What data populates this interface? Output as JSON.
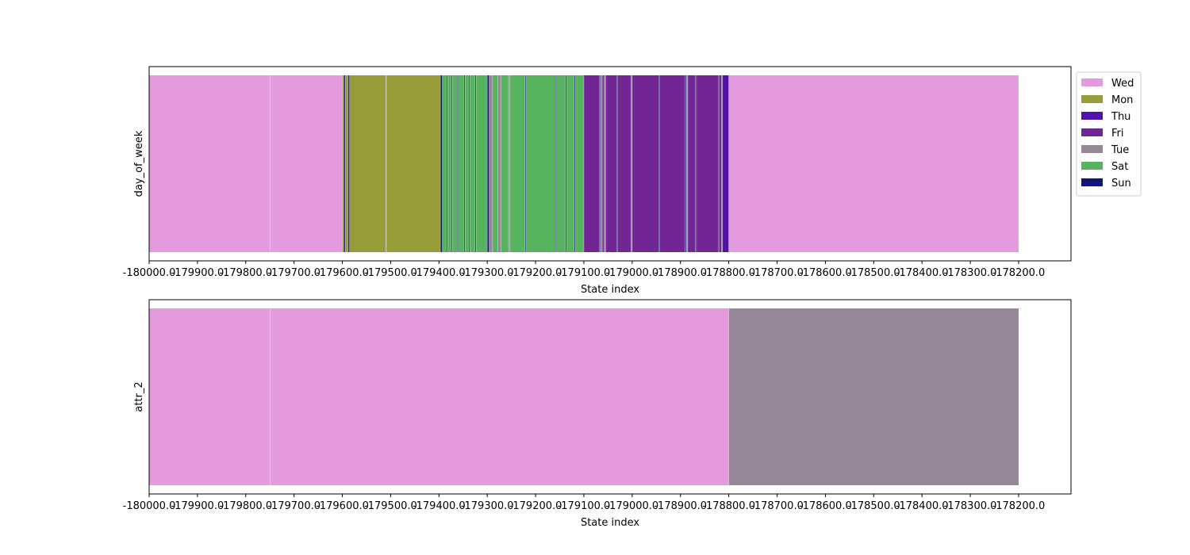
{
  "chart_data": [
    {
      "type": "state-timeline",
      "ylabel": "day_of_week",
      "xlabel": "State index",
      "xlim": [
        -180000.0,
        -178091.5
      ],
      "xticks": [
        -180000.0,
        -179900.0,
        -179800.0,
        -179700.0,
        -179600.0,
        -179500.0,
        -179400.0,
        -179300.0,
        -179200.0,
        -179100.0,
        -179000.0,
        -178900.0,
        -178800.0,
        -178700.0,
        -178600.0,
        -178500.0,
        -178400.0,
        -178300.0,
        -178200.0
      ],
      "xtick_labels": [
        "-180000.0",
        "-179900.0",
        "-179800.0",
        "-179700.0",
        "-179600.0",
        "-179500.0",
        "-179400.0",
        "-179300.0",
        "-179200.0",
        "-179100.0",
        "-179000.0",
        "-178900.0",
        "-178800.0",
        "-178700.0",
        "-178600.0",
        "-178500.0",
        "-178400.0",
        "-178300.0",
        "-178200.0"
      ],
      "segments": [
        {
          "start": -180000,
          "end": -179749,
          "state": "Wed"
        },
        {
          "start": -179749,
          "end": -179600,
          "state": "Wed"
        },
        {
          "start": -179600,
          "end": -179597,
          "state": "Mon"
        },
        {
          "start": -179597,
          "end": -179594,
          "state": "Sun"
        },
        {
          "start": -179594,
          "end": -179588,
          "state": "Mon"
        },
        {
          "start": -179588,
          "end": -179585,
          "state": "Sun"
        },
        {
          "start": -179585,
          "end": -179510,
          "state": "Mon"
        },
        {
          "start": -179510,
          "end": -179509,
          "state": "Tue"
        },
        {
          "start": -179509,
          "end": -179397,
          "state": "Mon"
        },
        {
          "start": -179397,
          "end": -179393,
          "state": "Sun"
        },
        {
          "start": -179393,
          "end": -179384,
          "state": "Sat"
        },
        {
          "start": -179384,
          "end": -179382,
          "state": "Sun"
        },
        {
          "start": -179382,
          "end": -179374,
          "state": "Sat"
        },
        {
          "start": -179374,
          "end": -179372,
          "state": "Sun"
        },
        {
          "start": -179372,
          "end": -179362,
          "state": "Sat"
        },
        {
          "start": -179362,
          "end": -179360,
          "state": "Sun"
        },
        {
          "start": -179360,
          "end": -179348,
          "state": "Sat"
        },
        {
          "start": -179348,
          "end": -179346,
          "state": "Sun"
        },
        {
          "start": -179346,
          "end": -179338,
          "state": "Sat"
        },
        {
          "start": -179338,
          "end": -179336,
          "state": "Sun"
        },
        {
          "start": -179336,
          "end": -179325,
          "state": "Sat"
        },
        {
          "start": -179325,
          "end": -179323,
          "state": "Sun"
        },
        {
          "start": -179323,
          "end": -179300,
          "state": "Sat"
        },
        {
          "start": -179300,
          "end": -179296,
          "state": "Sun"
        },
        {
          "start": -179296,
          "end": -179289,
          "state": "Tue"
        },
        {
          "start": -179289,
          "end": -179278,
          "state": "Sat"
        },
        {
          "start": -179278,
          "end": -179272,
          "state": "Tue"
        },
        {
          "start": -179272,
          "end": -179256,
          "state": "Sat"
        },
        {
          "start": -179256,
          "end": -179253,
          "state": "Tue"
        },
        {
          "start": -179253,
          "end": -179222,
          "state": "Sat"
        },
        {
          "start": -179222,
          "end": -179220,
          "state": "Sun"
        },
        {
          "start": -179220,
          "end": -179160,
          "state": "Sat"
        },
        {
          "start": -179160,
          "end": -179158,
          "state": "Sun"
        },
        {
          "start": -179158,
          "end": -179138,
          "state": "Sat"
        },
        {
          "start": -179138,
          "end": -179136,
          "state": "Sun"
        },
        {
          "start": -179136,
          "end": -179120,
          "state": "Sat"
        },
        {
          "start": -179120,
          "end": -179118,
          "state": "Sun"
        },
        {
          "start": -179118,
          "end": -179100,
          "state": "Sat"
        },
        {
          "start": -179100,
          "end": -179068,
          "state": "Fri"
        },
        {
          "start": -179068,
          "end": -179066,
          "state": "Sun"
        },
        {
          "start": -179066,
          "end": -179062,
          "state": "Tue"
        },
        {
          "start": -179062,
          "end": -179058,
          "state": "Fri"
        },
        {
          "start": -179058,
          "end": -179055,
          "state": "Tue"
        },
        {
          "start": -179055,
          "end": -179032,
          "state": "Fri"
        },
        {
          "start": -179032,
          "end": -179030,
          "state": "Sun"
        },
        {
          "start": -179030,
          "end": -179002,
          "state": "Fri"
        },
        {
          "start": -179002,
          "end": -179000,
          "state": "Tue"
        },
        {
          "start": -179000,
          "end": -178945,
          "state": "Fri"
        },
        {
          "start": -178945,
          "end": -178943,
          "state": "Sun"
        },
        {
          "start": -178943,
          "end": -178890,
          "state": "Fri"
        },
        {
          "start": -178890,
          "end": -178888,
          "state": "Sun"
        },
        {
          "start": -178888,
          "end": -178885,
          "state": "Tue"
        },
        {
          "start": -178885,
          "end": -178869,
          "state": "Fri"
        },
        {
          "start": -178869,
          "end": -178867,
          "state": "Sun"
        },
        {
          "start": -178867,
          "end": -178822,
          "state": "Fri"
        },
        {
          "start": -178822,
          "end": -178820,
          "state": "Sun"
        },
        {
          "start": -178820,
          "end": -178815,
          "state": "Fri"
        },
        {
          "start": -178815,
          "end": -178813,
          "state": "Tue"
        },
        {
          "start": -178813,
          "end": -178800,
          "state": "Thu"
        },
        {
          "start": -178800,
          "end": -178200,
          "state": "Wed"
        }
      ]
    },
    {
      "type": "state-timeline",
      "ylabel": "attr_2",
      "xlabel": "State index",
      "xlim": [
        -180000.0,
        -178091.5
      ],
      "xticks": [
        -180000.0,
        -179900.0,
        -179800.0,
        -179700.0,
        -179600.0,
        -179500.0,
        -179400.0,
        -179300.0,
        -179200.0,
        -179100.0,
        -179000.0,
        -178900.0,
        -178800.0,
        -178700.0,
        -178600.0,
        -178500.0,
        -178400.0,
        -178300.0,
        -178200.0
      ],
      "xtick_labels": [
        "-180000.0",
        "-179900.0",
        "-179800.0",
        "-179700.0",
        "-179600.0",
        "-179500.0",
        "-179400.0",
        "-179300.0",
        "-179200.0",
        "-179100.0",
        "-179000.0",
        "-178900.0",
        "-178800.0",
        "-178700.0",
        "-178600.0",
        "-178500.0",
        "-178400.0",
        "-178300.0",
        "-178200.0"
      ],
      "segments": [
        {
          "start": -180000,
          "end": -179749,
          "state": "Wed"
        },
        {
          "start": -179749,
          "end": -178800,
          "state": "Wed"
        },
        {
          "start": -178800,
          "end": -178200,
          "state": "Tue"
        }
      ]
    }
  ],
  "legend": {
    "placement": "outside-upper-right",
    "entries": [
      {
        "label": "Wed",
        "color": "#e49ade"
      },
      {
        "label": "Mon",
        "color": "#989c39"
      },
      {
        "label": "Thu",
        "color": "#5311ac"
      },
      {
        "label": "Fri",
        "color": "#722595"
      },
      {
        "label": "Tue",
        "color": "#958797"
      },
      {
        "label": "Sat",
        "color": "#56b45e"
      },
      {
        "label": "Sun",
        "color": "#101577"
      }
    ]
  }
}
